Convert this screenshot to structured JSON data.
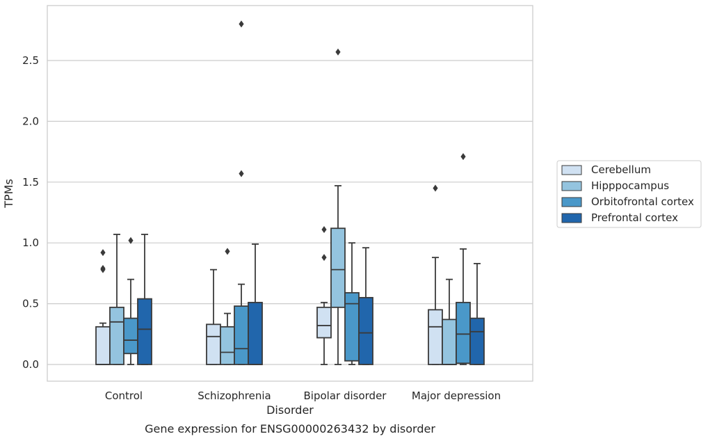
{
  "chart_data": {
    "type": "box",
    "title": "",
    "caption": "Gene expression for ENSG00000263432 by disorder",
    "xlabel": "Disorder",
    "ylabel": "TPMs",
    "ylim": [
      -0.135,
      2.95
    ],
    "yticks": [
      "0.0",
      "0.5",
      "1.0",
      "1.5",
      "2.0",
      "2.5"
    ],
    "grid": "horizontal",
    "legend_position": "right",
    "categories": [
      "Control",
      "Schizophrenia",
      "Bipolar disorder",
      "Major depression"
    ],
    "series": [
      {
        "name": "Cerebellum",
        "color": "#d0e1f2",
        "boxes": [
          {
            "q1": 0.0,
            "median": 0.0,
            "q3": 0.31,
            "whisker_low": 0.0,
            "whisker_high": 0.34,
            "outliers": [
              0.92,
              0.79,
              0.78
            ]
          },
          {
            "q1": 0.0,
            "median": 0.23,
            "q3": 0.33,
            "whisker_low": 0.0,
            "whisker_high": 0.78,
            "outliers": []
          },
          {
            "q1": 0.22,
            "median": 0.32,
            "q3": 0.47,
            "whisker_low": 0.0,
            "whisker_high": 0.51,
            "outliers": [
              1.11,
              0.88
            ]
          },
          {
            "q1": 0.0,
            "median": 0.31,
            "q3": 0.45,
            "whisker_low": 0.0,
            "whisker_high": 0.88,
            "outliers": [
              1.45
            ]
          }
        ]
      },
      {
        "name": "Hipppocampus",
        "color": "#94c4df",
        "boxes": [
          {
            "q1": 0.0,
            "median": 0.35,
            "q3": 0.47,
            "whisker_low": 0.0,
            "whisker_high": 1.07,
            "outliers": []
          },
          {
            "q1": 0.0,
            "median": 0.1,
            "q3": 0.31,
            "whisker_low": 0.0,
            "whisker_high": 0.42,
            "outliers": [
              0.93
            ]
          },
          {
            "q1": 0.47,
            "median": 0.78,
            "q3": 1.12,
            "whisker_low": 0.0,
            "whisker_high": 1.47,
            "outliers": [
              2.57
            ]
          },
          {
            "q1": 0.0,
            "median": 0.0,
            "q3": 0.37,
            "whisker_low": 0.0,
            "whisker_high": 0.7,
            "outliers": []
          }
        ]
      },
      {
        "name": "Orbitofrontal cortex",
        "color": "#4a98c9",
        "boxes": [
          {
            "q1": 0.09,
            "median": 0.2,
            "q3": 0.38,
            "whisker_low": 0.0,
            "whisker_high": 0.7,
            "outliers": [
              1.02
            ]
          },
          {
            "q1": 0.0,
            "median": 0.13,
            "q3": 0.48,
            "whisker_low": 0.0,
            "whisker_high": 0.66,
            "outliers": [
              2.8,
              1.57
            ]
          },
          {
            "q1": 0.03,
            "median": 0.5,
            "q3": 0.59,
            "whisker_low": 0.0,
            "whisker_high": 1.0,
            "outliers": []
          },
          {
            "q1": 0.01,
            "median": 0.25,
            "q3": 0.51,
            "whisker_low": 0.0,
            "whisker_high": 0.95,
            "outliers": [
              1.71
            ]
          }
        ]
      },
      {
        "name": "Prefrontal cortex",
        "color": "#2166ac",
        "boxes": [
          {
            "q1": 0.0,
            "median": 0.29,
            "q3": 0.54,
            "whisker_low": 0.0,
            "whisker_high": 1.07,
            "outliers": []
          },
          {
            "q1": 0.0,
            "median": 0.0,
            "q3": 0.51,
            "whisker_low": 0.0,
            "whisker_high": 0.99,
            "outliers": []
          },
          {
            "q1": 0.0,
            "median": 0.26,
            "q3": 0.55,
            "whisker_low": 0.0,
            "whisker_high": 0.96,
            "outliers": []
          },
          {
            "q1": 0.0,
            "median": 0.27,
            "q3": 0.38,
            "whisker_low": 0.0,
            "whisker_high": 0.83,
            "outliers": []
          }
        ]
      }
    ]
  }
}
